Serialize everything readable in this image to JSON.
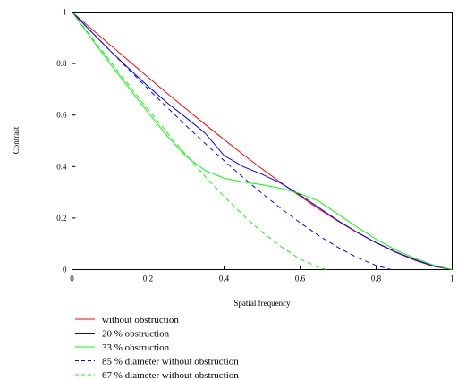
{
  "chart_data": {
    "type": "line",
    "title": "",
    "xlabel": "Spatial frequency",
    "ylabel": "Contrast",
    "xlim": [
      0,
      1
    ],
    "ylim": [
      0,
      1
    ],
    "grid": false,
    "legend_position": "bottom",
    "x_ticks": [
      {
        "value": 0,
        "label": "0"
      },
      {
        "value": 0.2,
        "label": "0.2"
      },
      {
        "value": 0.4,
        "label": "0.4"
      },
      {
        "value": 0.6,
        "label": "0.6"
      },
      {
        "value": 0.8,
        "label": "0.8"
      },
      {
        "value": 1,
        "label": "1"
      }
    ],
    "y_ticks": [
      {
        "value": 0,
        "label": "0"
      },
      {
        "value": 0.2,
        "label": "0.2"
      },
      {
        "value": 0.4,
        "label": "0.4"
      },
      {
        "value": 0.6,
        "label": "0.6"
      },
      {
        "value": 0.8,
        "label": "0.8"
      },
      {
        "value": 1,
        "label": "1"
      }
    ],
    "series": [
      {
        "name": "without obstruction",
        "color": "#ff0000",
        "dash": "solid",
        "points": [
          [
            0,
            1
          ],
          [
            0.05,
            0.936
          ],
          [
            0.1,
            0.873
          ],
          [
            0.15,
            0.81
          ],
          [
            0.2,
            0.747
          ],
          [
            0.25,
            0.685
          ],
          [
            0.3,
            0.624
          ],
          [
            0.35,
            0.564
          ],
          [
            0.4,
            0.505
          ],
          [
            0.45,
            0.447
          ],
          [
            0.5,
            0.391
          ],
          [
            0.55,
            0.337
          ],
          [
            0.6,
            0.285
          ],
          [
            0.65,
            0.235
          ],
          [
            0.7,
            0.188
          ],
          [
            0.75,
            0.144
          ],
          [
            0.8,
            0.104
          ],
          [
            0.85,
            0.068
          ],
          [
            0.9,
            0.037
          ],
          [
            0.95,
            0.013
          ],
          [
            1,
            0
          ]
        ]
      },
      {
        "name": "20 % obstruction",
        "color": "#0000ff",
        "dash": "solid",
        "points": [
          [
            0,
            1
          ],
          [
            0.05,
            0.925
          ],
          [
            0.1,
            0.85
          ],
          [
            0.15,
            0.78
          ],
          [
            0.2,
            0.712
          ],
          [
            0.25,
            0.648
          ],
          [
            0.3,
            0.59
          ],
          [
            0.35,
            0.53
          ],
          [
            0.4,
            0.443
          ],
          [
            0.45,
            0.4
          ],
          [
            0.5,
            0.37
          ],
          [
            0.55,
            0.335
          ],
          [
            0.6,
            0.29
          ],
          [
            0.65,
            0.24
          ],
          [
            0.7,
            0.19
          ],
          [
            0.75,
            0.145
          ],
          [
            0.8,
            0.105
          ],
          [
            0.85,
            0.07
          ],
          [
            0.9,
            0.04
          ],
          [
            0.95,
            0.015
          ],
          [
            1,
            0
          ]
        ]
      },
      {
        "name": "33 % obstruction",
        "color": "#00ff00",
        "dash": "solid",
        "points": [
          [
            0,
            1
          ],
          [
            0.05,
            0.9
          ],
          [
            0.1,
            0.8
          ],
          [
            0.15,
            0.705
          ],
          [
            0.2,
            0.61
          ],
          [
            0.25,
            0.52
          ],
          [
            0.3,
            0.44
          ],
          [
            0.35,
            0.385
          ],
          [
            0.4,
            0.355
          ],
          [
            0.45,
            0.34
          ],
          [
            0.5,
            0.33
          ],
          [
            0.55,
            0.315
          ],
          [
            0.6,
            0.295
          ],
          [
            0.65,
            0.265
          ],
          [
            0.7,
            0.215
          ],
          [
            0.75,
            0.165
          ],
          [
            0.8,
            0.118
          ],
          [
            0.85,
            0.078
          ],
          [
            0.9,
            0.045
          ],
          [
            0.95,
            0.018
          ],
          [
            1,
            0
          ]
        ]
      },
      {
        "name": "85 % diameter without obstruction",
        "color": "#0000ff",
        "dash": "dashed",
        "points": [
          [
            0,
            1
          ],
          [
            0.05,
            0.925
          ],
          [
            0.1,
            0.85
          ],
          [
            0.15,
            0.776
          ],
          [
            0.2,
            0.702
          ],
          [
            0.25,
            0.63
          ],
          [
            0.3,
            0.559
          ],
          [
            0.35,
            0.49
          ],
          [
            0.4,
            0.423
          ],
          [
            0.45,
            0.358
          ],
          [
            0.5,
            0.296
          ],
          [
            0.55,
            0.237
          ],
          [
            0.6,
            0.182
          ],
          [
            0.65,
            0.131
          ],
          [
            0.7,
            0.086
          ],
          [
            0.75,
            0.047
          ],
          [
            0.8,
            0.016
          ],
          [
            0.84,
            0
          ]
        ]
      },
      {
        "name": "67 % diameter without obstruction",
        "color": "#00ff00",
        "dash": "dashed",
        "points": [
          [
            0,
            1
          ],
          [
            0.05,
            0.905
          ],
          [
            0.1,
            0.81
          ],
          [
            0.15,
            0.716
          ],
          [
            0.2,
            0.623
          ],
          [
            0.25,
            0.533
          ],
          [
            0.3,
            0.445
          ],
          [
            0.35,
            0.362
          ],
          [
            0.4,
            0.284
          ],
          [
            0.45,
            0.212
          ],
          [
            0.5,
            0.146
          ],
          [
            0.55,
            0.089
          ],
          [
            0.6,
            0.041
          ],
          [
            0.65,
            0.008
          ],
          [
            0.67,
            0
          ]
        ]
      }
    ]
  }
}
